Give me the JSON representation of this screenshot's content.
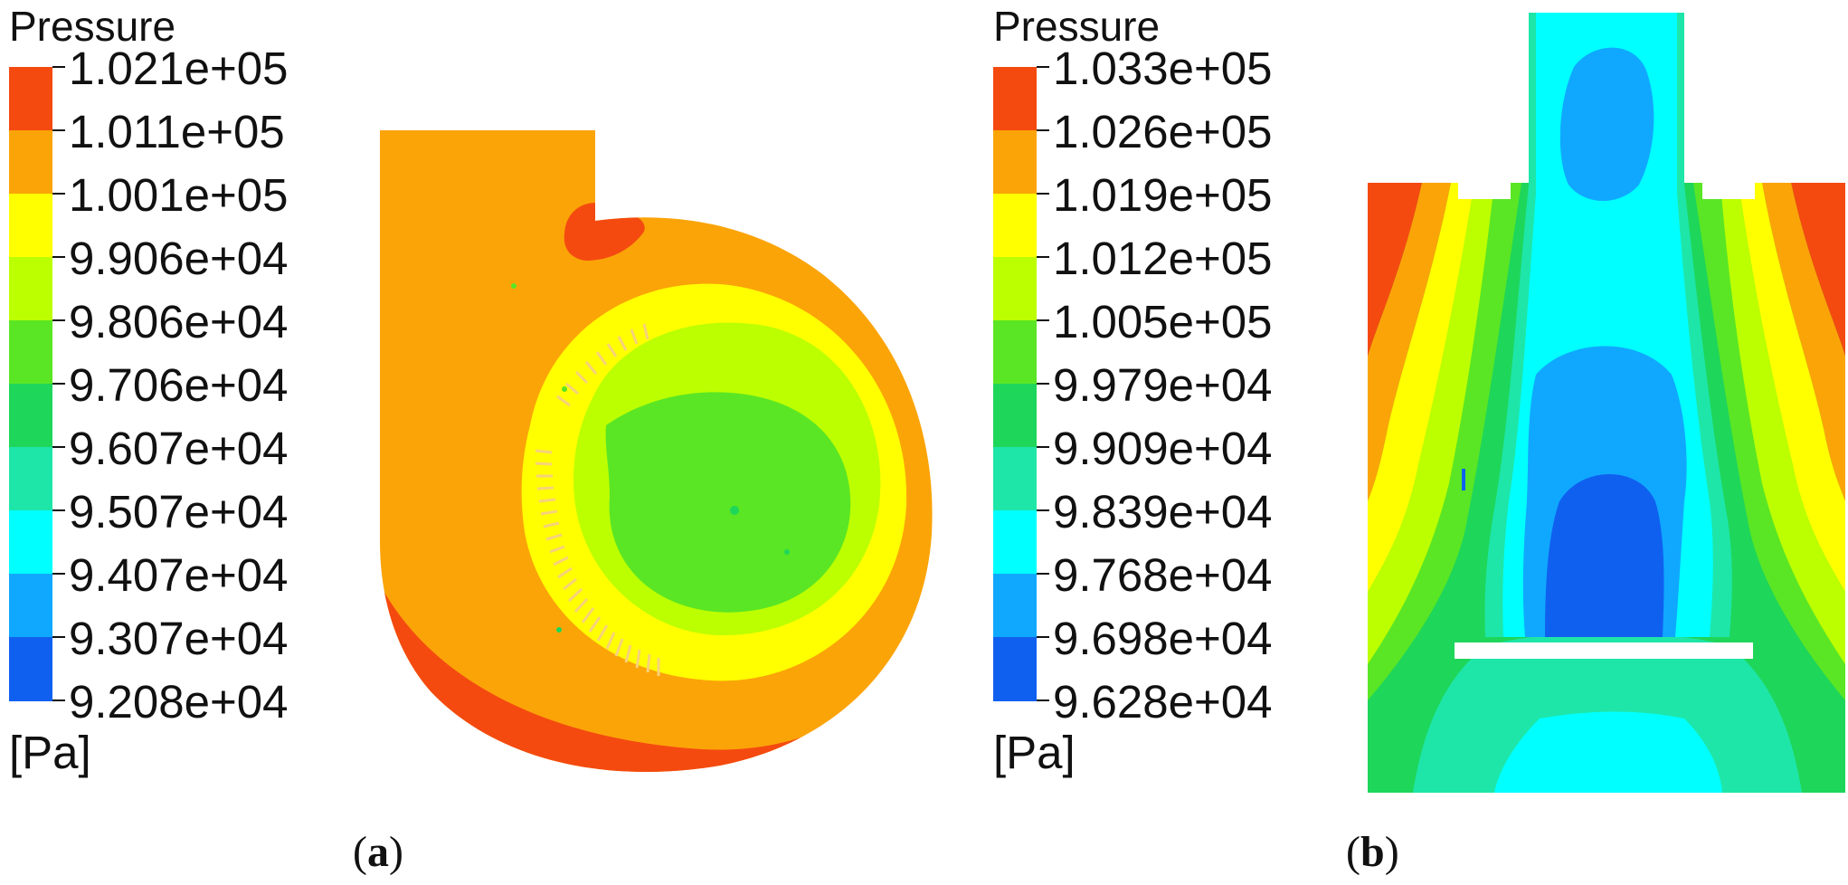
{
  "panels": [
    {
      "id": "a",
      "label": "a",
      "legend": {
        "title": "Pressure",
        "unit": "[Pa]",
        "ticks": [
          "1.021e+05",
          "1.011e+05",
          "1.001e+05",
          "9.906e+04",
          "9.806e+04",
          "9.706e+04",
          "9.607e+04",
          "9.507e+04",
          "9.407e+04",
          "9.307e+04",
          "9.208e+04"
        ],
        "colors": [
          "#f44a10",
          "#fba408",
          "#ffff00",
          "#bcff00",
          "#5ae624",
          "#1ed65a",
          "#1ee6a8",
          "#00ffff",
          "#10a8ff",
          "#1060f0"
        ]
      }
    },
    {
      "id": "b",
      "label": "b",
      "legend": {
        "title": "Pressure",
        "unit": "[Pa]",
        "ticks": [
          "1.033e+05",
          "1.026e+05",
          "1.019e+05",
          "1.012e+05",
          "1.005e+05",
          "9.979e+04",
          "9.909e+04",
          "9.839e+04",
          "9.768e+04",
          "9.698e+04",
          "9.628e+04"
        ],
        "colors": [
          "#f44a10",
          "#fba408",
          "#ffff00",
          "#bcff00",
          "#5ae624",
          "#1ed65a",
          "#1ee6a8",
          "#00ffff",
          "#10a8ff",
          "#1060f0"
        ]
      }
    }
  ]
}
